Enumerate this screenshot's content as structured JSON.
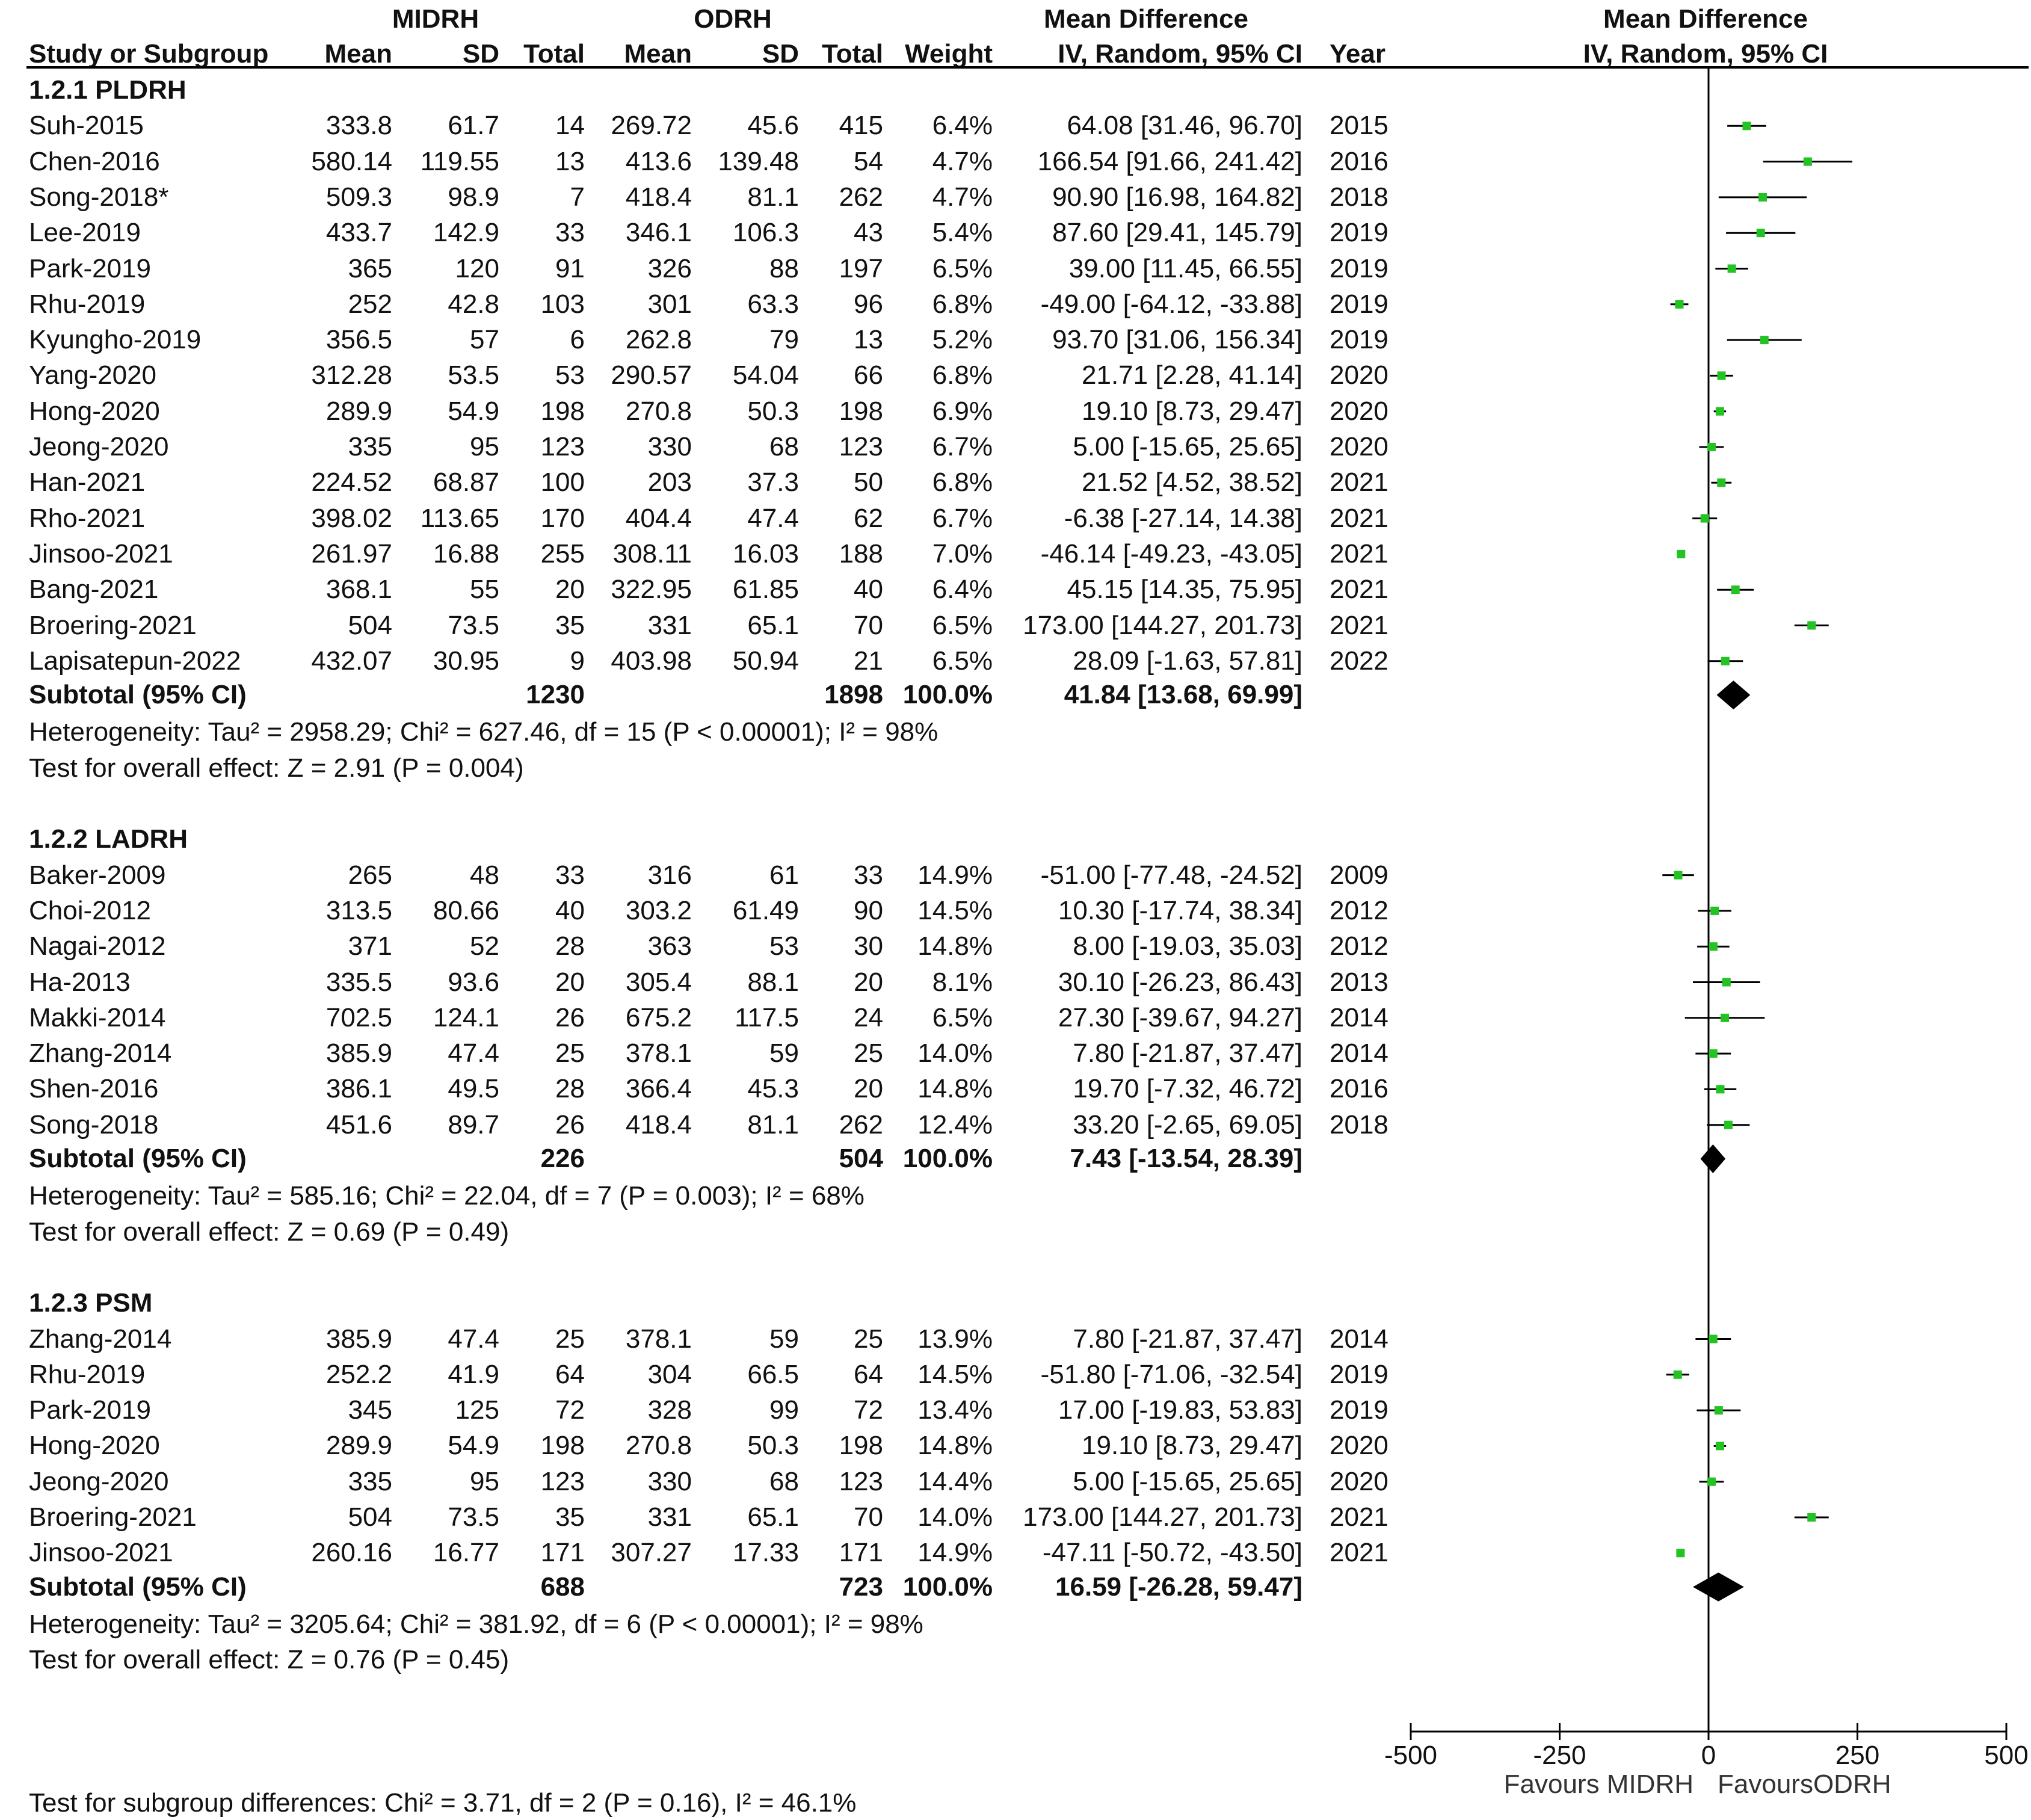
{
  "header": {
    "group1": "MIDRH",
    "group2": "ODRH",
    "md_title": "Mean Difference",
    "plot_title": "Mean Difference",
    "plot_subtitle": "IV, Random, 95% CI",
    "columns": [
      "Study or Subgroup",
      "Mean",
      "SD",
      "Total",
      "Mean",
      "SD",
      "Total",
      "Weight",
      "IV, Random, 95% CI",
      "Year"
    ]
  },
  "subgroups": [
    {
      "title": "1.2.1 PLDRH",
      "studies": [
        {
          "name": "Suh-2015",
          "m1": "333.8",
          "sd1": "61.7",
          "n1": "14",
          "m2": "269.72",
          "sd2": "45.6",
          "n2": "415",
          "w": "6.4%",
          "ci": "64.08 [31.46, 96.70]",
          "year": "2015"
        },
        {
          "name": "Chen-2016",
          "m1": "580.14",
          "sd1": "119.55",
          "n1": "13",
          "m2": "413.6",
          "sd2": "139.48",
          "n2": "54",
          "w": "4.7%",
          "ci": "166.54 [91.66, 241.42]",
          "year": "2016"
        },
        {
          "name": "Song-2018*",
          "m1": "509.3",
          "sd1": "98.9",
          "n1": "7",
          "m2": "418.4",
          "sd2": "81.1",
          "n2": "262",
          "w": "4.7%",
          "ci": "90.90 [16.98, 164.82]",
          "year": "2018"
        },
        {
          "name": "Lee-2019",
          "m1": "433.7",
          "sd1": "142.9",
          "n1": "33",
          "m2": "346.1",
          "sd2": "106.3",
          "n2": "43",
          "w": "5.4%",
          "ci": "87.60 [29.41, 145.79]",
          "year": "2019"
        },
        {
          "name": "Park-2019",
          "m1": "365",
          "sd1": "120",
          "n1": "91",
          "m2": "326",
          "sd2": "88",
          "n2": "197",
          "w": "6.5%",
          "ci": "39.00 [11.45, 66.55]",
          "year": "2019"
        },
        {
          "name": "Rhu-2019",
          "m1": "252",
          "sd1": "42.8",
          "n1": "103",
          "m2": "301",
          "sd2": "63.3",
          "n2": "96",
          "w": "6.8%",
          "ci": "-49.00 [-64.12, -33.88]",
          "year": "2019"
        },
        {
          "name": "Kyungho-2019",
          "m1": "356.5",
          "sd1": "57",
          "n1": "6",
          "m2": "262.8",
          "sd2": "79",
          "n2": "13",
          "w": "5.2%",
          "ci": "93.70 [31.06, 156.34]",
          "year": "2019"
        },
        {
          "name": "Yang-2020",
          "m1": "312.28",
          "sd1": "53.5",
          "n1": "53",
          "m2": "290.57",
          "sd2": "54.04",
          "n2": "66",
          "w": "6.8%",
          "ci": "21.71 [2.28, 41.14]",
          "year": "2020"
        },
        {
          "name": "Hong-2020",
          "m1": "289.9",
          "sd1": "54.9",
          "n1": "198",
          "m2": "270.8",
          "sd2": "50.3",
          "n2": "198",
          "w": "6.9%",
          "ci": "19.10 [8.73, 29.47]",
          "year": "2020"
        },
        {
          "name": "Jeong-2020",
          "m1": "335",
          "sd1": "95",
          "n1": "123",
          "m2": "330",
          "sd2": "68",
          "n2": "123",
          "w": "6.7%",
          "ci": "5.00 [-15.65, 25.65]",
          "year": "2020"
        },
        {
          "name": "Han-2021",
          "m1": "224.52",
          "sd1": "68.87",
          "n1": "100",
          "m2": "203",
          "sd2": "37.3",
          "n2": "50",
          "w": "6.8%",
          "ci": "21.52 [4.52, 38.52]",
          "year": "2021"
        },
        {
          "name": "Rho-2021",
          "m1": "398.02",
          "sd1": "113.65",
          "n1": "170",
          "m2": "404.4",
          "sd2": "47.4",
          "n2": "62",
          "w": "6.7%",
          "ci": "-6.38 [-27.14, 14.38]",
          "year": "2021"
        },
        {
          "name": "Jinsoo-2021",
          "m1": "261.97",
          "sd1": "16.88",
          "n1": "255",
          "m2": "308.11",
          "sd2": "16.03",
          "n2": "188",
          "w": "7.0%",
          "ci": "-46.14 [-49.23, -43.05]",
          "year": "2021"
        },
        {
          "name": "Bang-2021",
          "m1": "368.1",
          "sd1": "55",
          "n1": "20",
          "m2": "322.95",
          "sd2": "61.85",
          "n2": "40",
          "w": "6.4%",
          "ci": "45.15 [14.35, 75.95]",
          "year": "2021"
        },
        {
          "name": "Broering-2021",
          "m1": "504",
          "sd1": "73.5",
          "n1": "35",
          "m2": "331",
          "sd2": "65.1",
          "n2": "70",
          "w": "6.5%",
          "ci": "173.00 [144.27, 201.73]",
          "year": "2021"
        },
        {
          "name": "Lapisatepun-2022",
          "m1": "432.07",
          "sd1": "30.95",
          "n1": "9",
          "m2": "403.98",
          "sd2": "50.94",
          "n2": "21",
          "w": "6.5%",
          "ci": "28.09 [-1.63, 57.81]",
          "year": "2022"
        }
      ],
      "subtotal": {
        "label": "Subtotal (95% CI)",
        "n1": "1230",
        "n2": "1898",
        "w": "100.0%",
        "ci": "41.84 [13.68, 69.99]"
      },
      "heterogeneity": "Heterogeneity: Tau² = 2958.29; Chi² = 627.46, df = 15 (P < 0.00001); I² = 98%",
      "overall": "Test for overall effect: Z = 2.91 (P = 0.004)"
    },
    {
      "title": "1.2.2 LADRH",
      "studies": [
        {
          "name": "Baker-2009",
          "m1": "265",
          "sd1": "48",
          "n1": "33",
          "m2": "316",
          "sd2": "61",
          "n2": "33",
          "w": "14.9%",
          "ci": "-51.00 [-77.48, -24.52]",
          "year": "2009"
        },
        {
          "name": "Choi-2012",
          "m1": "313.5",
          "sd1": "80.66",
          "n1": "40",
          "m2": "303.2",
          "sd2": "61.49",
          "n2": "90",
          "w": "14.5%",
          "ci": "10.30 [-17.74, 38.34]",
          "year": "2012"
        },
        {
          "name": "Nagai-2012",
          "m1": "371",
          "sd1": "52",
          "n1": "28",
          "m2": "363",
          "sd2": "53",
          "n2": "30",
          "w": "14.8%",
          "ci": "8.00 [-19.03, 35.03]",
          "year": "2012"
        },
        {
          "name": "Ha-2013",
          "m1": "335.5",
          "sd1": "93.6",
          "n1": "20",
          "m2": "305.4",
          "sd2": "88.1",
          "n2": "20",
          "w": "8.1%",
          "ci": "30.10 [-26.23, 86.43]",
          "year": "2013"
        },
        {
          "name": "Makki-2014",
          "m1": "702.5",
          "sd1": "124.1",
          "n1": "26",
          "m2": "675.2",
          "sd2": "117.5",
          "n2": "24",
          "w": "6.5%",
          "ci": "27.30 [-39.67, 94.27]",
          "year": "2014"
        },
        {
          "name": "Zhang-2014",
          "m1": "385.9",
          "sd1": "47.4",
          "n1": "25",
          "m2": "378.1",
          "sd2": "59",
          "n2": "25",
          "w": "14.0%",
          "ci": "7.80 [-21.87, 37.47]",
          "year": "2014"
        },
        {
          "name": "Shen-2016",
          "m1": "386.1",
          "sd1": "49.5",
          "n1": "28",
          "m2": "366.4",
          "sd2": "45.3",
          "n2": "20",
          "w": "14.8%",
          "ci": "19.70 [-7.32, 46.72]",
          "year": "2016"
        },
        {
          "name": "Song-2018",
          "m1": "451.6",
          "sd1": "89.7",
          "n1": "26",
          "m2": "418.4",
          "sd2": "81.1",
          "n2": "262",
          "w": "12.4%",
          "ci": "33.20 [-2.65, 69.05]",
          "year": "2018"
        }
      ],
      "subtotal": {
        "label": "Subtotal (95% CI)",
        "n1": "226",
        "n2": "504",
        "w": "100.0%",
        "ci": "7.43 [-13.54, 28.39]"
      },
      "heterogeneity": "Heterogeneity: Tau² = 585.16; Chi² = 22.04, df = 7 (P = 0.003); I² = 68%",
      "overall": "Test for overall effect: Z = 0.69 (P = 0.49)"
    },
    {
      "title": "1.2.3 PSM",
      "studies": [
        {
          "name": "Zhang-2014",
          "m1": "385.9",
          "sd1": "47.4",
          "n1": "25",
          "m2": "378.1",
          "sd2": "59",
          "n2": "25",
          "w": "13.9%",
          "ci": "7.80 [-21.87, 37.47]",
          "year": "2014"
        },
        {
          "name": "Rhu-2019",
          "m1": "252.2",
          "sd1": "41.9",
          "n1": "64",
          "m2": "304",
          "sd2": "66.5",
          "n2": "64",
          "w": "14.5%",
          "ci": "-51.80 [-71.06, -32.54]",
          "year": "2019"
        },
        {
          "name": "Park-2019",
          "m1": "345",
          "sd1": "125",
          "n1": "72",
          "m2": "328",
          "sd2": "99",
          "n2": "72",
          "w": "13.4%",
          "ci": "17.00 [-19.83, 53.83]",
          "year": "2019"
        },
        {
          "name": "Hong-2020",
          "m1": "289.9",
          "sd1": "54.9",
          "n1": "198",
          "m2": "270.8",
          "sd2": "50.3",
          "n2": "198",
          "w": "14.8%",
          "ci": "19.10 [8.73, 29.47]",
          "year": "2020"
        },
        {
          "name": "Jeong-2020",
          "m1": "335",
          "sd1": "95",
          "n1": "123",
          "m2": "330",
          "sd2": "68",
          "n2": "123",
          "w": "14.4%",
          "ci": "5.00 [-15.65, 25.65]",
          "year": "2020"
        },
        {
          "name": "Broering-2021",
          "m1": "504",
          "sd1": "73.5",
          "n1": "35",
          "m2": "331",
          "sd2": "65.1",
          "n2": "70",
          "w": "14.0%",
          "ci": "173.00 [144.27, 201.73]",
          "year": "2021"
        },
        {
          "name": "Jinsoo-2021",
          "m1": "260.16",
          "sd1": "16.77",
          "n1": "171",
          "m2": "307.27",
          "sd2": "17.33",
          "n2": "171",
          "w": "14.9%",
          "ci": "-47.11 [-50.72, -43.50]",
          "year": "2021"
        }
      ],
      "subtotal": {
        "label": "Subtotal (95% CI)",
        "n1": "688",
        "n2": "723",
        "w": "100.0%",
        "ci": "16.59 [-26.28, 59.47]"
      },
      "heterogeneity": "Heterogeneity: Tau² = 3205.64; Chi² = 381.92, df = 6 (P < 0.00001); I² = 98%",
      "overall": "Test for overall effect: Z = 0.76 (P = 0.45)"
    }
  ],
  "footer": {
    "subgroup_test": "Test for subgroup differences: Chi² = 3.71, df = 2 (P = 0.16), I² = 46.1%",
    "favours_left": "Favours MIDRH",
    "favours_right": "FavoursODRH"
  },
  "colors": {
    "marker": "#22c322",
    "diamond": "#000000",
    "line": "#000000"
  },
  "chart_data": {
    "type": "forest",
    "title": "Mean Difference",
    "xlabel": "IV, Random, 95% CI",
    "xlim": [
      -500,
      500
    ],
    "xticks": [
      -500,
      -250,
      0,
      250,
      500
    ],
    "groups": [
      {
        "name": "1.2.1 PLDRH",
        "estimates": [
          {
            "study": "Suh-2015",
            "md": 64.08,
            "lo": 31.46,
            "hi": 96.7
          },
          {
            "study": "Chen-2016",
            "md": 166.54,
            "lo": 91.66,
            "hi": 241.42
          },
          {
            "study": "Song-2018*",
            "md": 90.9,
            "lo": 16.98,
            "hi": 164.82
          },
          {
            "study": "Lee-2019",
            "md": 87.6,
            "lo": 29.41,
            "hi": 145.79
          },
          {
            "study": "Park-2019",
            "md": 39.0,
            "lo": 11.45,
            "hi": 66.55
          },
          {
            "study": "Rhu-2019",
            "md": -49.0,
            "lo": -64.12,
            "hi": -33.88
          },
          {
            "study": "Kyungho-2019",
            "md": 93.7,
            "lo": 31.06,
            "hi": 156.34
          },
          {
            "study": "Yang-2020",
            "md": 21.71,
            "lo": 2.28,
            "hi": 41.14
          },
          {
            "study": "Hong-2020",
            "md": 19.1,
            "lo": 8.73,
            "hi": 29.47
          },
          {
            "study": "Jeong-2020",
            "md": 5.0,
            "lo": -15.65,
            "hi": 25.65
          },
          {
            "study": "Han-2021",
            "md": 21.52,
            "lo": 4.52,
            "hi": 38.52
          },
          {
            "study": "Rho-2021",
            "md": -6.38,
            "lo": -27.14,
            "hi": 14.38
          },
          {
            "study": "Jinsoo-2021",
            "md": -46.14,
            "lo": -49.23,
            "hi": -43.05
          },
          {
            "study": "Bang-2021",
            "md": 45.15,
            "lo": 14.35,
            "hi": 75.95
          },
          {
            "study": "Broering-2021",
            "md": 173.0,
            "lo": 144.27,
            "hi": 201.73
          },
          {
            "study": "Lapisatepun-2022",
            "md": 28.09,
            "lo": -1.63,
            "hi": 57.81
          }
        ],
        "pooled": {
          "md": 41.84,
          "lo": 13.68,
          "hi": 69.99
        }
      },
      {
        "name": "1.2.2 LADRH",
        "estimates": [
          {
            "study": "Baker-2009",
            "md": -51.0,
            "lo": -77.48,
            "hi": -24.52
          },
          {
            "study": "Choi-2012",
            "md": 10.3,
            "lo": -17.74,
            "hi": 38.34
          },
          {
            "study": "Nagai-2012",
            "md": 8.0,
            "lo": -19.03,
            "hi": 35.03
          },
          {
            "study": "Ha-2013",
            "md": 30.1,
            "lo": -26.23,
            "hi": 86.43
          },
          {
            "study": "Makki-2014",
            "md": 27.3,
            "lo": -39.67,
            "hi": 94.27
          },
          {
            "study": "Zhang-2014",
            "md": 7.8,
            "lo": -21.87,
            "hi": 37.47
          },
          {
            "study": "Shen-2016",
            "md": 19.7,
            "lo": -7.32,
            "hi": 46.72
          },
          {
            "study": "Song-2018",
            "md": 33.2,
            "lo": -2.65,
            "hi": 69.05
          }
        ],
        "pooled": {
          "md": 7.43,
          "lo": -13.54,
          "hi": 28.39
        }
      },
      {
        "name": "1.2.3 PSM",
        "estimates": [
          {
            "study": "Zhang-2014",
            "md": 7.8,
            "lo": -21.87,
            "hi": 37.47
          },
          {
            "study": "Rhu-2019",
            "md": -51.8,
            "lo": -71.06,
            "hi": -32.54
          },
          {
            "study": "Park-2019",
            "md": 17.0,
            "lo": -19.83,
            "hi": 53.83
          },
          {
            "study": "Hong-2020",
            "md": 19.1,
            "lo": 8.73,
            "hi": 29.47
          },
          {
            "study": "Jeong-2020",
            "md": 5.0,
            "lo": -15.65,
            "hi": 25.65
          },
          {
            "study": "Broering-2021",
            "md": 173.0,
            "lo": 144.27,
            "hi": 201.73
          },
          {
            "study": "Jinsoo-2021",
            "md": -47.11,
            "lo": -50.72,
            "hi": -43.5
          }
        ],
        "pooled": {
          "md": 16.59,
          "lo": -26.28,
          "hi": 59.47
        }
      }
    ]
  }
}
